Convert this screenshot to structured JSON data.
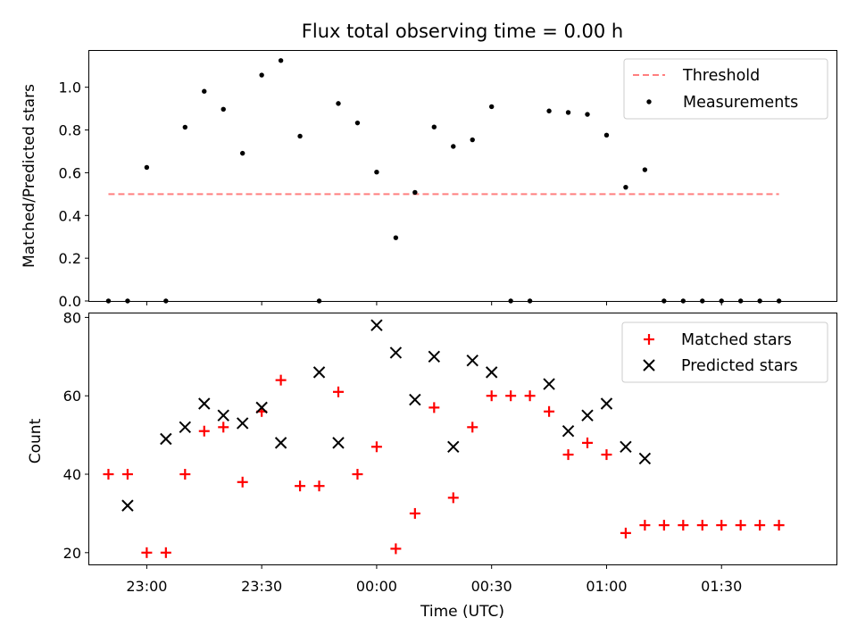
{
  "chart_data": [
    {
      "type": "scatter",
      "title": "Flux total observing time = 0.00 h",
      "ylabel": "Matched/Predicted stars",
      "xlim": [
        "22:45",
        "02:00"
      ],
      "ylim": [
        0,
        1.17
      ],
      "yticks": [
        0.0,
        0.2,
        0.4,
        0.6,
        0.8,
        1.0
      ],
      "ytick_labels": [
        "0.0",
        "0.2",
        "0.4",
        "0.6",
        "0.8",
        "1.0"
      ],
      "grid": false,
      "legend_position": "top-right",
      "threshold": {
        "name": "Threshold",
        "value": 0.5,
        "x_range": [
          "22:50",
          "01:45"
        ],
        "color": "#ff7f7f",
        "style": "dashed"
      },
      "series": [
        {
          "name": "Measurements",
          "color": "#000000",
          "marker": "dot",
          "x": [
            "22:50",
            "22:55",
            "23:00",
            "23:05",
            "23:10",
            "23:15",
            "23:20",
            "23:25",
            "23:30",
            "23:35",
            "23:40",
            "23:45",
            "23:50",
            "23:55",
            "00:00",
            "00:05",
            "00:10",
            "00:15",
            "00:20",
            "00:25",
            "00:30",
            "00:35",
            "00:40",
            "00:45",
            "00:50",
            "00:55",
            "01:00",
            "01:05",
            "01:10",
            "01:15",
            "01:20",
            "01:25",
            "01:30",
            "01:35",
            "01:40",
            "01:45"
          ],
          "y": [
            0,
            0,
            0.625,
            0,
            0.813,
            0.981,
            0.897,
            0.691,
            1.057,
            1.125,
            0.771,
            0,
            0.924,
            0.833,
            0.603,
            0.296,
            0.508,
            0.814,
            0.723,
            0.754,
            0.909,
            0,
            0,
            0.889,
            0.882,
            0.873,
            0.776,
            0.532,
            0.614,
            0,
            0,
            0,
            0,
            0,
            0,
            0
          ]
        }
      ]
    },
    {
      "type": "scatter",
      "xlabel": "Time (UTC)",
      "ylabel": "Count",
      "xlim": [
        "22:45",
        "02:00"
      ],
      "ylim": [
        17,
        81
      ],
      "xtick_labels": [
        "23:00",
        "23:30",
        "00:00",
        "00:30",
        "01:00",
        "01:30"
      ],
      "yticks": [
        20,
        40,
        60,
        80
      ],
      "ytick_labels": [
        "20",
        "40",
        "60",
        "80"
      ],
      "grid": false,
      "legend_position": "top-right",
      "series": [
        {
          "name": "Matched stars",
          "color": "#ff0000",
          "marker": "plus",
          "x": [
            "22:50",
            "22:55",
            "23:00",
            "23:05",
            "23:10",
            "23:15",
            "23:20",
            "23:25",
            "23:30",
            "23:35",
            "23:40",
            "23:45",
            "23:50",
            "23:55",
            "00:00",
            "00:05",
            "00:10",
            "00:15",
            "00:20",
            "00:25",
            "00:30",
            "00:35",
            "00:40",
            "00:45",
            "00:50",
            "00:55",
            "01:00",
            "01:05",
            "01:10",
            "01:15",
            "01:20",
            "01:25",
            "01:30",
            "01:35",
            "01:40",
            "01:45"
          ],
          "y": [
            40,
            40,
            20,
            20,
            40,
            51,
            52,
            38,
            56,
            64,
            37,
            37,
            61,
            40,
            47,
            21,
            30,
            57,
            34,
            52,
            60,
            60,
            60,
            56,
            45,
            48,
            45,
            25,
            27,
            27,
            27,
            27,
            27,
            27,
            27,
            27
          ]
        },
        {
          "name": "Predicted stars",
          "color": "#000000",
          "marker": "x",
          "x": [
            "22:55",
            "23:05",
            "23:10",
            "23:15",
            "23:20",
            "23:25",
            "23:30",
            "23:35",
            "23:45",
            "23:50",
            "00:00",
            "00:05",
            "00:10",
            "00:15",
            "00:20",
            "00:25",
            "00:30",
            "00:45",
            "00:50",
            "00:55",
            "01:00",
            "01:05",
            "01:10"
          ],
          "y": [
            32,
            49,
            52,
            58,
            55,
            53,
            57,
            48,
            66,
            48,
            78,
            71,
            59,
            70,
            47,
            69,
            66,
            63,
            51,
            55,
            58,
            47,
            44
          ]
        }
      ]
    }
  ]
}
